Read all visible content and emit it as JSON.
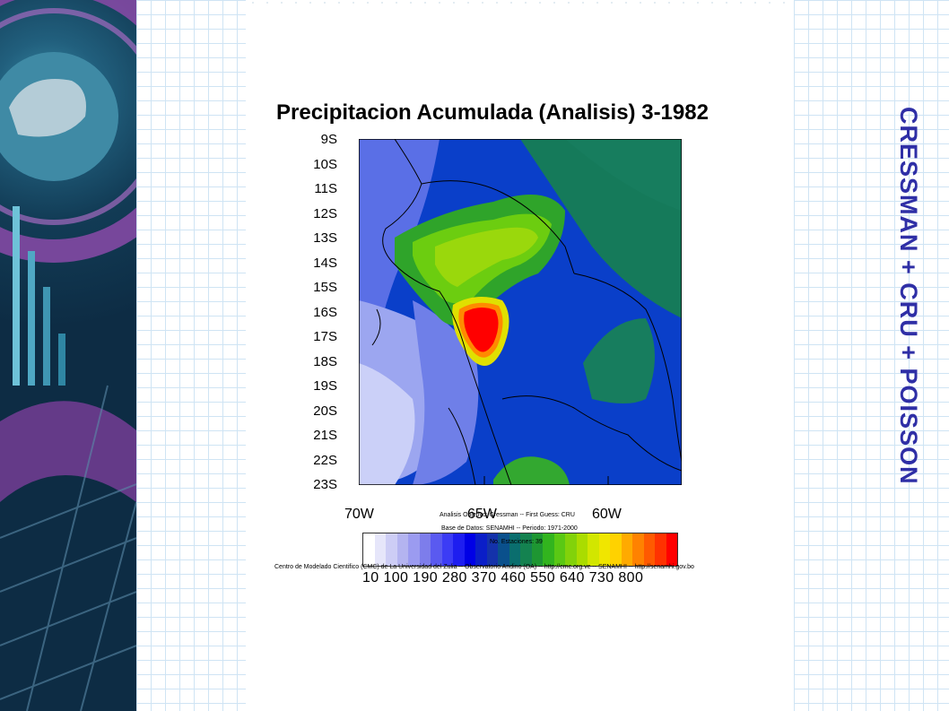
{
  "slide": {
    "side_title": "CRESSMAN + CRU + POISSON",
    "figure_title": "Precipitacion Acumulada (Analisis)  3-1982"
  },
  "map": {
    "lat_labels": [
      "9S",
      "10S",
      "11S",
      "12S",
      "13S",
      "14S",
      "15S",
      "16S",
      "17S",
      "18S",
      "19S",
      "20S",
      "21S",
      "22S",
      "23S"
    ],
    "lon_labels": [
      "70W",
      "65W",
      "60W"
    ],
    "notes": {
      "analysis": "Analisis Objetivo: Cressman  --  First Guess: CRU",
      "database": "Base de Datos: SENAMHI  --  Periodo: 1971-2000",
      "stations": "No. Estaciones: 39",
      "credits": "Centro de Modelado Cientifico (CMC) de La Universidad del Zulia -- Observatorio Andino (OA) -- http://cmc.org.ve -- SENAMHI -- http://senamhi.gov.bo"
    },
    "colorbar_labels": "10   100  190  280  370  460  550  640  730  800",
    "colorbar_colors": [
      "#ffffff",
      "#e6e6fa",
      "#cdcdf5",
      "#b4b4f0",
      "#9b9bf0",
      "#7d7deb",
      "#5a5af0",
      "#3c3cf5",
      "#1e1ef0",
      "#0000e6",
      "#0a1ec8",
      "#1432aa",
      "#0a508c",
      "#0a6e6e",
      "#148250",
      "#1e9632",
      "#32b41e",
      "#5ac814",
      "#82d20a",
      "#aadc00",
      "#d2e600",
      "#f0e600",
      "#ffd200",
      "#ffaa00",
      "#ff8200",
      "#ff5a00",
      "#ff3200",
      "#ff0000"
    ]
  }
}
